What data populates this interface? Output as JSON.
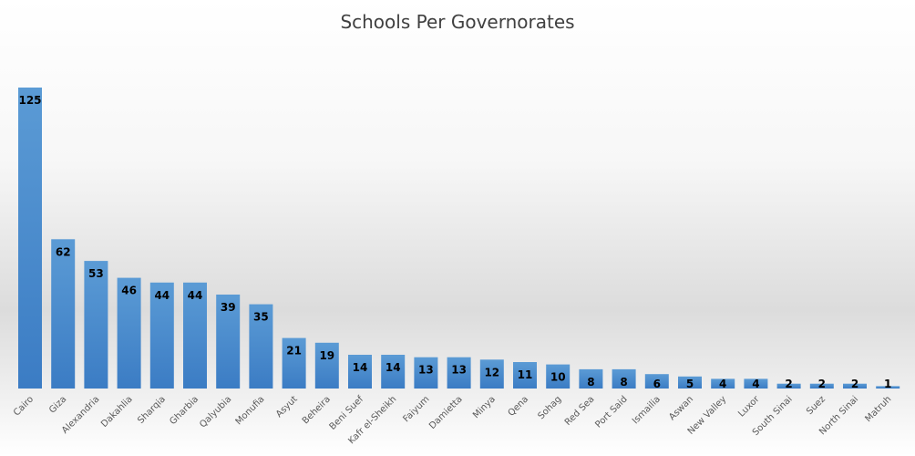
{
  "chart_data": {
    "type": "bar",
    "title": "Schools Per Governorates",
    "xlabel": "",
    "ylabel": "",
    "categories": [
      "Cairo",
      "Giza",
      "Alexandria",
      "Dakahlia",
      "Sharqia",
      "Gharbia",
      "Qalyubia",
      "Monufia",
      "Asyut",
      "Beheira",
      "Beni Suef",
      "Kafr el-Sheikh",
      "Faiyum",
      "Damietta",
      "Minya",
      "Qena",
      "Sohag",
      "Red Sea",
      "Port Said",
      "Ismailia",
      "Aswan",
      "New Valley",
      "Luxor",
      "South Sinai",
      "Suez",
      "North Sinai",
      "Matruh"
    ],
    "values": [
      125,
      62,
      53,
      46,
      44,
      44,
      39,
      35,
      21,
      19,
      14,
      14,
      13,
      13,
      12,
      11,
      10,
      8,
      8,
      6,
      5,
      4,
      4,
      2,
      2,
      2,
      1
    ],
    "ylim": [
      0,
      125
    ],
    "grid": false,
    "legend": "none",
    "data_labels": true,
    "bar_color": "#5b9bd5",
    "bar_color_dark": "#3b7cc4"
  }
}
